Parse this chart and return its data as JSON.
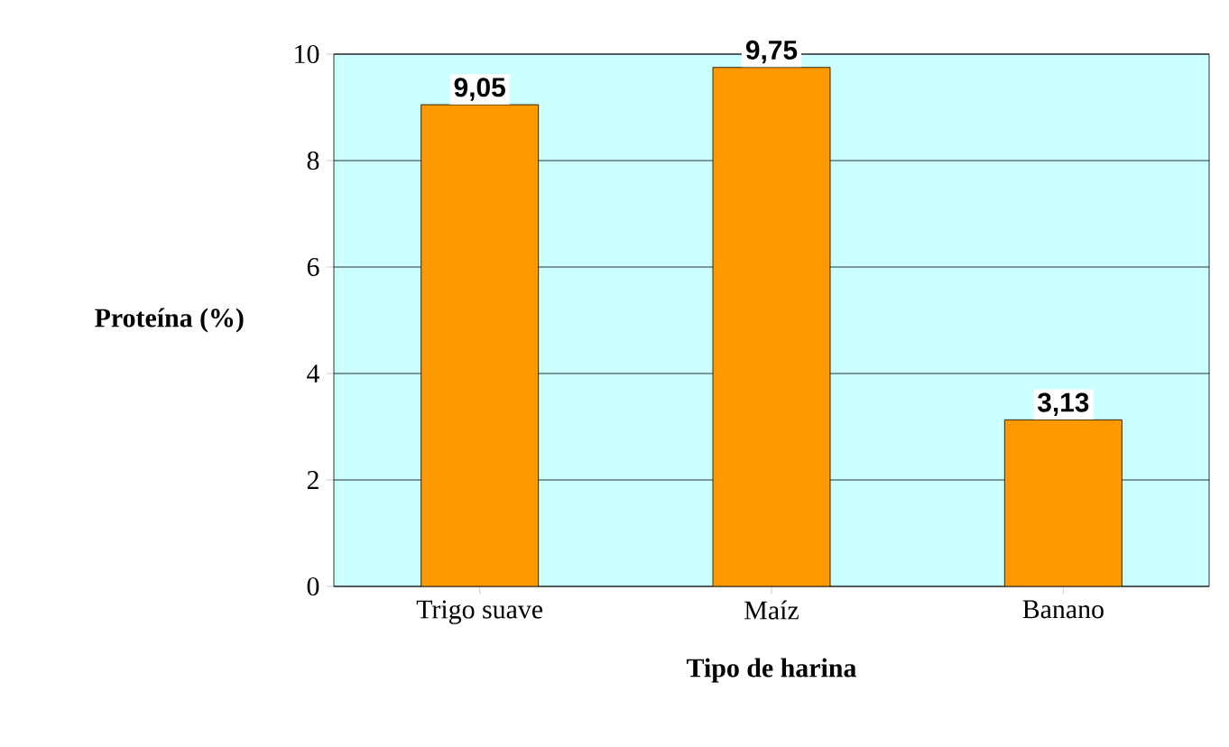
{
  "chart_data": {
    "type": "bar",
    "xlabel": "Tipo de harina",
    "ylabel": "Proteína (%)",
    "categories": [
      "Trigo suave",
      "Maíz",
      "Banano"
    ],
    "values": [
      9.05,
      9.75,
      3.13
    ],
    "value_labels": [
      "9,05",
      "9,75",
      "3,13"
    ],
    "color": "#ff9900",
    "ylim": [
      0,
      10
    ],
    "yticks": [
      0,
      2,
      4,
      6,
      8,
      10
    ],
    "grid": "y"
  }
}
